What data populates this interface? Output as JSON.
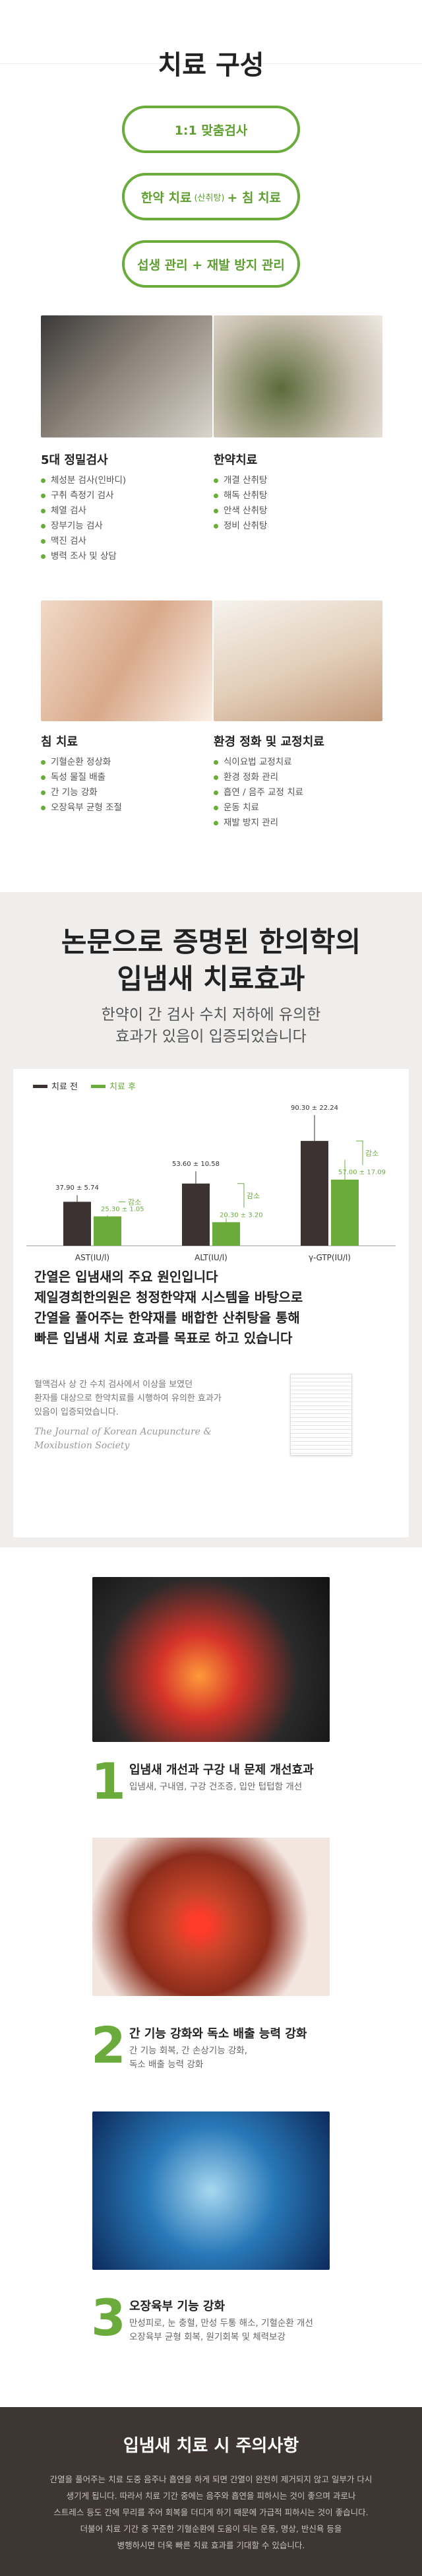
{
  "composition": {
    "title": "치료 구성",
    "steps": [
      {
        "text": "1:1 맞춤검사"
      },
      {
        "text": "한약 치료",
        "note": "(산취탕)",
        "extra": "+ 침 치료"
      },
      {
        "text": "섭생 관리 + 재발 방지 관리"
      }
    ]
  },
  "treatments": [
    {
      "title": "5대 정밀검사",
      "items": [
        "체성분 검사(인바디)",
        "구취 측정기 검사",
        "체열 검사",
        "장부기능 검사",
        "맥진 검사",
        "병력 조사 및 상담"
      ]
    },
    {
      "title": "한약치료",
      "items": [
        "개결 산취탕",
        "해독 산취탕",
        "안색 산취탕",
        "정비 산취탕"
      ]
    },
    {
      "title": "침 치료",
      "items": [
        "기혈순환 정상화",
        "독성 물질 배출",
        "간 기능 강화",
        "오장육부 균형 조절"
      ]
    },
    {
      "title": "환경 정화 및 교정치료",
      "items": [
        "식이요법 교정치료",
        "환경 정화 관리",
        "흡연 / 음주 교정 치료",
        "운동 치료",
        "재발 방지 관리"
      ]
    }
  ],
  "evidence": {
    "title_lines": [
      "논문으로 증명된 한의학의",
      "입냄새 치료효과"
    ],
    "subtitle_lines": [
      "한약이 간 검사 수치 저하에 유의한",
      "효과가 있음이 입증되었습니다"
    ],
    "summary_lines": [
      "간열은 입냄새의 주요 원인입니다",
      "제일경희한의원은 청정한약재 시스템을 바탕으로",
      "간열을 풀어주는 한약재를 배합한 산취탕을 통해",
      "빠른 입냄새 치료 효과를 목표로 하고 있습니다"
    ],
    "note_lines": [
      "혈액검사 상 간 수치 검사에서 이상을 보였던",
      "환자를 대상으로 한약치료를 시행하여 유의한 효과가",
      "있음이 입증되었습니다."
    ],
    "journal": "The Journal of Korean Acupuncture & Moxibustion Society"
  },
  "chart_data": {
    "type": "bar",
    "categories": [
      "AST(IU/l)",
      "ALT(IU/l)",
      "γ-GTP(IU/l)"
    ],
    "annotation": "감소",
    "series": [
      {
        "name": "치료 전",
        "color": "#3b3231",
        "values": [
          37.9,
          53.6,
          90.3
        ],
        "errors": [
          5.74,
          10.58,
          22.24
        ],
        "value_labels": [
          "37.90 ± 5.74",
          "53.60 ± 10.58",
          "90.30 ± 22.24"
        ]
      },
      {
        "name": "치료 후",
        "color": "#6aab3c",
        "values": [
          25.3,
          20.3,
          57.0
        ],
        "errors": [
          1.05,
          3.2,
          17.09
        ],
        "value_labels": [
          "25.30 ± 1.05",
          "20.30 ± 3.20",
          "57.00 ± 17.09"
        ]
      }
    ]
  },
  "effects": [
    {
      "number": "1",
      "title": "입냄새 개선과 구강 내 문제 개선효과",
      "desc_lines": [
        "입냄새, 구내염, 구강 건조증, 입안 텁텁함 개선"
      ]
    },
    {
      "number": "2",
      "title": "간 기능 강화와 독소 배출 능력 강화",
      "desc_lines": [
        "간 기능 회복, 간 손상기능 강화,",
        "독소 배출 능력 강화"
      ]
    },
    {
      "number": "3",
      "title": "오장육부 기능 강화",
      "desc_lines": [
        "만성피로, 눈 충혈, 만성 두통 해소, 기혈순환 개선",
        "오장육부 균형 회복, 원기회복 및 체력보강"
      ]
    }
  ],
  "caution": {
    "title": "입냄새 치료 시 주의사항",
    "lines": [
      "간열을 풀어주는 치료 도중 음주나 흡연을 하게 되면 간열이 완전히 제거되지 않고 일부가 다시",
      "생기게 됩니다. 따라서 치료 기간 중에는 음주와 흡연을 피하시는 것이 좋으며 과로나",
      "스트레스 등도 간에 무리를 주어 회복을 더디게 하기 때문에 가급적 피하시는 것이 좋습니다.",
      "더불어 치료 기간 중 꾸준한 기혈순환에 도움이 되는 운동, 명상, 반신욕 등을",
      "병행하시면 더욱 빠른 치료 효과를 기대할 수 있습니다."
    ]
  }
}
